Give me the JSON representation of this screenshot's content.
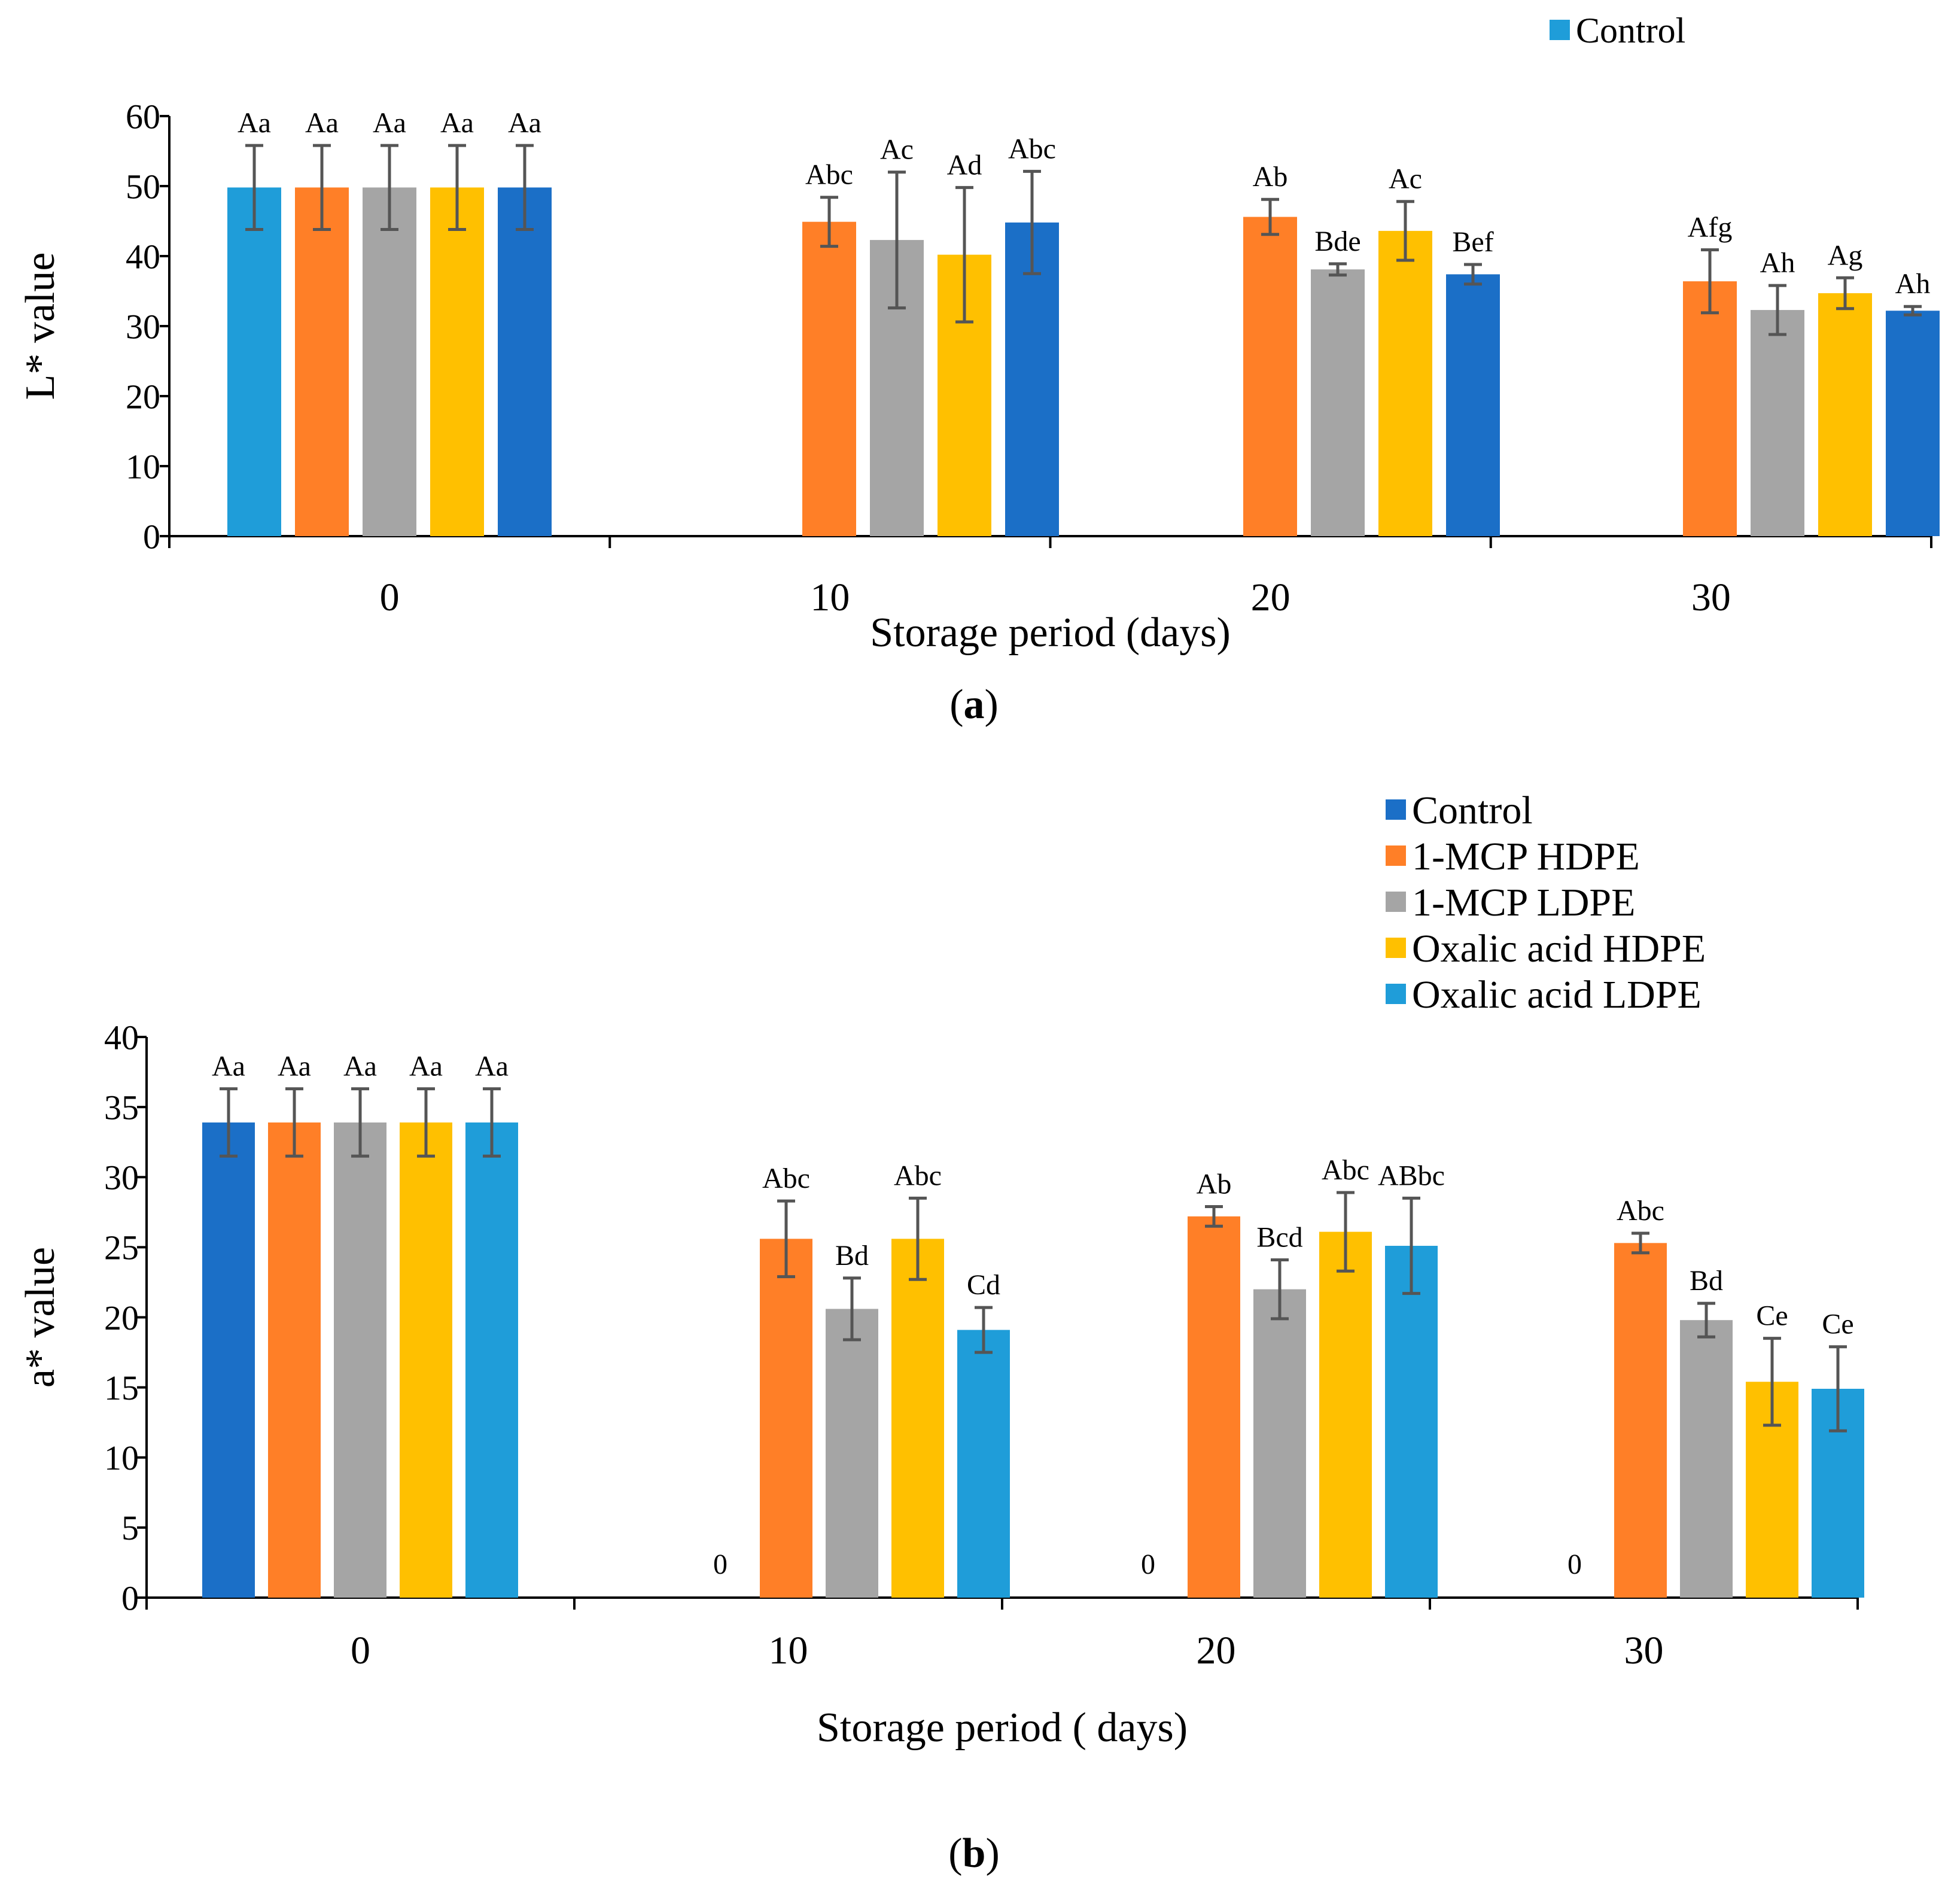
{
  "chart_data": [
    {
      "type": "bar",
      "panel_label": "a",
      "ylabel": "L* value",
      "xlabel": "Storage period (days)",
      "ylim": [
        0,
        60
      ],
      "yticks": [
        0,
        10,
        20,
        30,
        40,
        50,
        60
      ],
      "categories": [
        "0",
        "10",
        "20",
        "30"
      ],
      "legend": [
        {
          "name": "Control",
          "color": "#1F9DD9"
        }
      ],
      "series": [
        {
          "name": "Control",
          "color": "#1F9DD9",
          "values": [
            49.8,
            null,
            null,
            null
          ],
          "errors": [
            6.0,
            null,
            null,
            null
          ],
          "labels": [
            "Aa",
            "",
            "",
            ""
          ]
        },
        {
          "name": "1-MCP HDPE",
          "color": "#FF7F27",
          "values": [
            49.8,
            44.9,
            45.6,
            36.4
          ],
          "errors": [
            6.0,
            3.5,
            2.5,
            4.5
          ],
          "labels": [
            "Aa",
            "Abc",
            "Ab",
            "Afg"
          ]
        },
        {
          "name": "1-MCP LDPE",
          "color": "#A5A5A5",
          "values": [
            49.8,
            42.3,
            38.1,
            32.3
          ],
          "errors": [
            6.0,
            9.7,
            0.8,
            3.5
          ],
          "labels": [
            "Aa",
            "Ac",
            "Bde",
            "Ah"
          ]
        },
        {
          "name": "Oxalic acid HDPE",
          "color": "#FFC000",
          "values": [
            49.8,
            40.2,
            43.6,
            34.7
          ],
          "errors": [
            6.0,
            9.6,
            4.2,
            2.2
          ],
          "labels": [
            "Aa",
            "Ad",
            "Ac",
            "Ag"
          ]
        },
        {
          "name": "Oxalic acid LDPE",
          "color": "#1B6FC7",
          "values": [
            49.8,
            44.8,
            37.4,
            32.2
          ],
          "errors": [
            6.0,
            7.3,
            1.4,
            0.6
          ],
          "labels": [
            "Aa",
            "Abc",
            "Bef",
            "Ah"
          ]
        }
      ]
    },
    {
      "type": "bar",
      "panel_label": "b",
      "ylabel": "a* value",
      "xlabel": "Storage period ( days)",
      "ylim": [
        0,
        40
      ],
      "yticks": [
        0,
        5,
        10,
        15,
        20,
        25,
        30,
        35,
        40
      ],
      "categories": [
        "0",
        "10",
        "20",
        "30"
      ],
      "legend": [
        {
          "name": "Control",
          "color": "#1B6FC7"
        },
        {
          "name": "1-MCP HDPE",
          "color": "#FF7F27"
        },
        {
          "name": "1-MCP LDPE",
          "color": "#A5A5A5"
        },
        {
          "name": "Oxalic acid HDPE",
          "color": "#FFC000"
        },
        {
          "name": "Oxalic acid LDPE",
          "color": "#1F9DD9"
        }
      ],
      "series": [
        {
          "name": "Control",
          "color": "#1B6FC7",
          "values": [
            33.9,
            0,
            0,
            0
          ],
          "errors": [
            2.4,
            null,
            null,
            null
          ],
          "labels": [
            "Aa",
            "0",
            "0",
            "0"
          ]
        },
        {
          "name": "1-MCP HDPE",
          "color": "#FF7F27",
          "values": [
            33.9,
            25.6,
            27.2,
            25.3
          ],
          "errors": [
            2.4,
            2.7,
            0.7,
            0.7
          ],
          "labels": [
            "Aa",
            "Abc",
            "Ab",
            "Abc"
          ]
        },
        {
          "name": "1-MCP LDPE",
          "color": "#A5A5A5",
          "values": [
            33.9,
            20.6,
            22.0,
            19.8
          ],
          "errors": [
            2.4,
            2.2,
            2.1,
            1.2
          ],
          "labels": [
            "Aa",
            "Bd",
            "Bcd",
            "Bd"
          ]
        },
        {
          "name": "Oxalic acid HDPE",
          "color": "#FFC000",
          "values": [
            33.9,
            25.6,
            26.1,
            15.4
          ],
          "errors": [
            2.4,
            2.9,
            2.8,
            3.1
          ],
          "labels": [
            "Aa",
            "Abc",
            "Abc",
            "Ce"
          ]
        },
        {
          "name": "Oxalic acid LDPE",
          "color": "#1F9DD9",
          "values": [
            33.9,
            19.1,
            25.1,
            14.9
          ],
          "errors": [
            2.4,
            1.6,
            3.4,
            3.0
          ],
          "labels": [
            "Aa",
            "Cd",
            "ABbc",
            "Ce"
          ]
        }
      ]
    }
  ]
}
